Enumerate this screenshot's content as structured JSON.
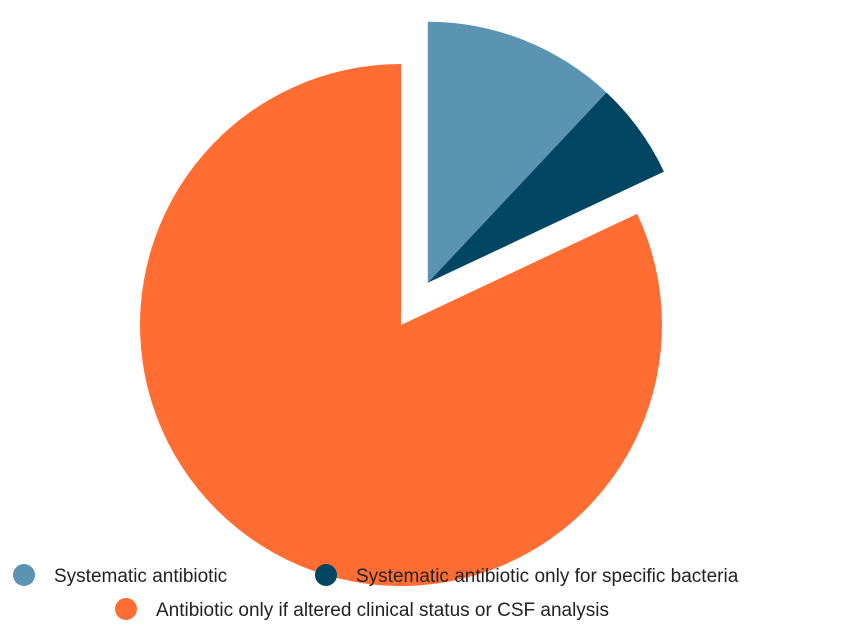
{
  "chart_data": {
    "type": "pie",
    "title": "",
    "slices": [
      {
        "label": "Systematic antibiotic",
        "value": 12,
        "color": "#5b93b3",
        "exploded": true
      },
      {
        "label": "Systematic antibiotic only for specific bacteria",
        "value": 6,
        "color": "#034663",
        "exploded": true
      },
      {
        "label": "Antibiotic only if altered clinical status or CSF analysis",
        "value": 82,
        "color": "#ff6d33",
        "exploded": false
      }
    ],
    "start_angle": "12 o'clock, clockwise",
    "legend_position": "bottom"
  }
}
